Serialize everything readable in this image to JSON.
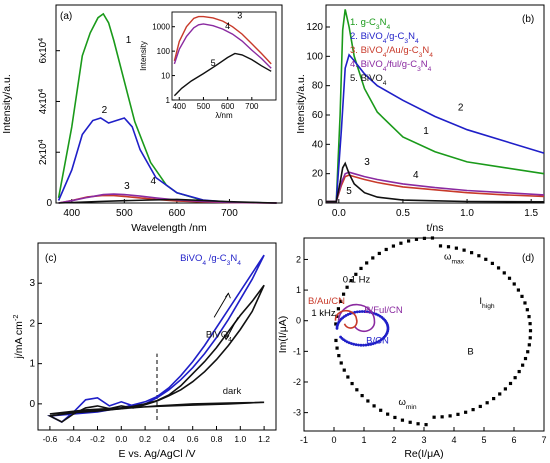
{
  "chart_data": [
    {
      "panel": "(a)",
      "type": "line",
      "xlabel": "Wavelength /nm",
      "ylabel": "Intensity/a.u.",
      "xlim": [
        370,
        800
      ],
      "ylim": [
        0,
        78000
      ],
      "xticks": [
        "400",
        "500",
        "600",
        "700"
      ],
      "yticks": [
        {
          "v": 0,
          "t": "0"
        },
        {
          "v": 20000,
          "t": "2x10",
          "e": "4"
        },
        {
          "v": 40000,
          "t": "4x10",
          "e": "4"
        },
        {
          "v": 60000,
          "t": "6x10",
          "e": "4"
        }
      ],
      "series": [
        {
          "label": "1",
          "color": "#1a9a1a",
          "x": [
            375,
            400,
            420,
            435,
            450,
            460,
            470,
            480,
            500,
            520,
            550,
            580,
            600,
            650,
            700,
            750,
            790
          ],
          "y": [
            2000,
            30000,
            58000,
            67000,
            73000,
            74500,
            71000,
            64000,
            48000,
            32000,
            16000,
            7000,
            4000,
            1000,
            300,
            100,
            0
          ]
        },
        {
          "label": "2",
          "color": "#1f1fc8",
          "x": [
            375,
            400,
            420,
            440,
            455,
            470,
            485,
            500,
            515,
            530,
            560,
            600,
            650,
            700,
            750,
            790
          ],
          "y": [
            1000,
            13000,
            27000,
            32500,
            33500,
            31500,
            32500,
            33500,
            30000,
            21000,
            10000,
            4000,
            1200,
            300,
            100,
            0
          ]
        },
        {
          "label": "3",
          "color": "#c83a2a",
          "x": [
            375,
            400,
            430,
            460,
            480,
            500,
            530,
            560,
            600,
            650,
            700,
            790
          ],
          "y": [
            0,
            1000,
            2400,
            3000,
            2900,
            2600,
            2000,
            1400,
            800,
            400,
            150,
            0
          ]
        },
        {
          "label": "4",
          "color": "#8a2aa0",
          "x": [
            375,
            400,
            430,
            460,
            480,
            500,
            530,
            560,
            600,
            650,
            700,
            790
          ],
          "y": [
            0,
            900,
            2200,
            3300,
            3500,
            3300,
            2700,
            2000,
            1200,
            600,
            250,
            0
          ]
        },
        {
          "label": "5",
          "color": "#111111",
          "x": [
            375,
            400,
            450,
            500,
            550,
            600,
            650,
            700,
            790
          ],
          "y": [
            0,
            200,
            600,
            900,
            1200,
            1400,
            1000,
            500,
            0
          ]
        }
      ],
      "inset": {
        "ylabel": "Intensity",
        "xlabel": "λ/nm",
        "ylog": true,
        "xlim": [
          370,
          800
        ],
        "ylim": [
          1,
          4000
        ],
        "xticks": [
          "400",
          "500",
          "600",
          "700"
        ],
        "yticks": [
          {
            "v": 1,
            "t": "1"
          },
          {
            "v": 10,
            "t": "10"
          },
          {
            "v": 100,
            "t": "100"
          },
          {
            "v": 1000,
            "t": "1000"
          }
        ],
        "series": [
          {
            "label": "3",
            "color": "#c83a2a",
            "x": [
              380,
              400,
              430,
              460,
              480,
              500,
              540,
              580,
              620,
              660,
              700,
              740,
              780
            ],
            "y": [
              40,
              250,
              1000,
              2200,
              2600,
              2600,
              2300,
              1700,
              1000,
              500,
              200,
              80,
              30
            ]
          },
          {
            "label": "4",
            "color": "#8a2aa0",
            "x": [
              380,
              400,
              430,
              460,
              480,
              500,
              540,
              580,
              620,
              660,
              700,
              740,
              780
            ],
            "y": [
              30,
              120,
              400,
              900,
              1200,
              1300,
              1100,
              800,
              500,
              260,
              110,
              50,
              20
            ]
          },
          {
            "label": "5",
            "color": "#111111",
            "x": [
              380,
              410,
              450,
              500,
              550,
              600,
              630,
              660,
              700,
              740,
              780
            ],
            "y": [
              1.5,
              3,
              6,
              12,
              25,
              55,
              80,
              70,
              45,
              25,
              15
            ]
          }
        ],
        "labels": [
          {
            "t": "3",
            "x": 650,
            "y": 2200
          },
          {
            "t": "4",
            "x": 600,
            "y": 800
          },
          {
            "t": "5",
            "x": 540,
            "y": 25
          }
        ]
      },
      "labels": [
        {
          "t": "1",
          "x": 508,
          "y": 63000
        },
        {
          "t": "2",
          "x": 462,
          "y": 35500
        },
        {
          "t": "3",
          "x": 505,
          "y": 5500
        },
        {
          "t": "4",
          "x": 555,
          "y": 7500
        }
      ]
    },
    {
      "panel": "(b)",
      "type": "line",
      "xlabel": "t/ns",
      "ylabel": "Intensity/a.u.",
      "xlim": [
        -0.1,
        1.6
      ],
      "ylim": [
        0,
        135
      ],
      "xticks": [
        "0.0",
        "0.5",
        "1.0",
        "1.5"
      ],
      "yticks": [
        "0",
        "20",
        "40",
        "60",
        "80",
        "100",
        "120"
      ],
      "legend": [
        {
          "num": "1.",
          "text": "g-C",
          "sub": "3",
          "text2": "N",
          "sub2": "4",
          "color": "#1a9a1a"
        },
        {
          "num": "2.",
          "text": "BiVO",
          "sub": "4",
          "text2": "/g-C",
          "sub2": "3",
          "text3": "N",
          "sub3": "4",
          "color": "#1f1fc8"
        },
        {
          "num": "3.",
          "text": "BiVO",
          "sub": "4",
          "text2": "/Au/g-C",
          "sub2": "3",
          "text3": "N",
          "sub3": "4",
          "color": "#c83a2a"
        },
        {
          "num": "4.",
          "text": "BiVO",
          "sub": "4",
          "text2": "/ful/g-C",
          "sub2": "3",
          "text3": "N",
          "sub3": "4",
          "color": "#8a2aa0"
        },
        {
          "num": "5.",
          "text": "BiVO",
          "sub": "4",
          "color": "#111111"
        }
      ],
      "series": [
        {
          "label": "1",
          "color": "#1a9a1a",
          "x": [
            -0.1,
            -0.02,
            0.01,
            0.03,
            0.05,
            0.08,
            0.12,
            0.2,
            0.3,
            0.5,
            0.75,
            1.0,
            1.3,
            1.6
          ],
          "y": [
            1,
            1,
            60,
            118,
            132,
            120,
            100,
            78,
            62,
            45,
            35,
            28,
            24,
            20
          ]
        },
        {
          "label": "2",
          "color": "#1f1fc8",
          "x": [
            -0.1,
            -0.02,
            0.02,
            0.05,
            0.08,
            0.12,
            0.2,
            0.3,
            0.5,
            0.75,
            1.0,
            1.3,
            1.6
          ],
          "y": [
            1,
            1,
            50,
            92,
            101,
            97,
            88,
            80,
            70,
            59,
            50,
            42,
            34
          ]
        },
        {
          "label": "3",
          "color": "#c83a2a",
          "x": [
            -0.1,
            -0.02,
            0.02,
            0.05,
            0.08,
            0.12,
            0.2,
            0.3,
            0.5,
            0.75,
            1.0,
            1.3,
            1.6
          ],
          "y": [
            1,
            1,
            12,
            18,
            19,
            18,
            16,
            14,
            11,
            9,
            7,
            5.5,
            4.5
          ]
        },
        {
          "label": "4",
          "color": "#8a2aa0",
          "x": [
            -0.1,
            -0.02,
            0.02,
            0.05,
            0.08,
            0.12,
            0.2,
            0.3,
            0.5,
            0.75,
            1.0,
            1.3,
            1.6
          ],
          "y": [
            1,
            1,
            14,
            20,
            21,
            20,
            18,
            16,
            13,
            10.5,
            8.5,
            7,
            5.5
          ]
        },
        {
          "label": "5",
          "color": "#111111",
          "x": [
            -0.1,
            -0.02,
            0.01,
            0.03,
            0.05,
            0.08,
            0.12,
            0.2,
            0.3,
            0.5,
            0.75,
            1.0,
            1.6
          ],
          "y": [
            1,
            1,
            14,
            24,
            27,
            20,
            13,
            7,
            4,
            2,
            1.5,
            1,
            0.8
          ]
        }
      ],
      "labels": [
        {
          "t": "1",
          "x": 0.68,
          "y": 47
        },
        {
          "t": "2",
          "x": 0.95,
          "y": 63
        },
        {
          "t": "3",
          "x": 0.22,
          "y": 26
        },
        {
          "t": "4",
          "x": 0.6,
          "y": 17
        },
        {
          "t": "5",
          "x": 0.08,
          "y": 6
        }
      ]
    },
    {
      "panel": "(c)",
      "type": "line",
      "xlabel": "E vs. Ag/AgCl /V",
      "ylabel": "j/mA cm",
      "ylabel_sup": "-2",
      "xlim": [
        -0.7,
        1.3
      ],
      "ylim": [
        -0.65,
        4.0
      ],
      "xticks": [
        "-0.6",
        "-0.4",
        "-0.2",
        "0.0",
        "0.2",
        "0.4",
        "0.6",
        "0.8",
        "1.0",
        "1.2"
      ],
      "yticks": [
        "0",
        "1",
        "2",
        "3"
      ],
      "dashed_x": 0.3,
      "series": [
        {
          "label": "BiVO4/g-C3N4",
          "color": "#1f1fc8",
          "x": [
            -0.6,
            -0.4,
            -0.2,
            0.0,
            0.2,
            0.3,
            0.4,
            0.5,
            0.6,
            0.7,
            0.8,
            0.9,
            1.0,
            1.1,
            1.2,
            1.1,
            1.0,
            0.9,
            0.8,
            0.7,
            0.6,
            0.5,
            0.4,
            0.3,
            0.2,
            0.1,
            0.0,
            -0.1,
            -0.2,
            -0.3,
            -0.4,
            -0.5,
            -0.6
          ],
          "y": [
            -0.3,
            -0.25,
            -0.2,
            -0.1,
            0.05,
            0.18,
            0.4,
            0.7,
            1.05,
            1.45,
            1.9,
            2.35,
            2.8,
            3.25,
            3.7,
            3.1,
            2.6,
            2.1,
            1.65,
            1.25,
            0.9,
            0.6,
            0.35,
            0.15,
            0.0,
            -0.05,
            0.05,
            -0.05,
            0.15,
            0.1,
            -0.2,
            -0.45,
            -0.3
          ]
        },
        {
          "label": "BiVO4",
          "color": "#111111",
          "x": [
            -0.6,
            -0.4,
            -0.2,
            0.0,
            0.2,
            0.3,
            0.4,
            0.5,
            0.6,
            0.7,
            0.8,
            0.9,
            1.0,
            1.1,
            1.2,
            1.1,
            1.0,
            0.9,
            0.8,
            0.7,
            0.6,
            0.5,
            0.4,
            0.3,
            0.2,
            0.1,
            0.0,
            -0.1,
            -0.2,
            -0.3,
            -0.4,
            -0.5,
            -0.6
          ],
          "y": [
            -0.3,
            -0.22,
            -0.18,
            -0.12,
            0.0,
            0.08,
            0.22,
            0.45,
            0.75,
            1.05,
            1.4,
            1.8,
            2.2,
            2.55,
            2.95,
            2.3,
            1.85,
            1.45,
            1.1,
            0.8,
            0.55,
            0.35,
            0.2,
            0.07,
            -0.02,
            -0.1,
            -0.05,
            -0.12,
            -0.05,
            -0.1,
            -0.25,
            -0.45,
            -0.3
          ]
        },
        {
          "label": "dark",
          "color": "#111111",
          "x": [
            -0.6,
            -0.3,
            0.0,
            0.3,
            0.6,
            0.9,
            1.2,
            0.9,
            0.6,
            0.3,
            0.0,
            -0.3,
            -0.6
          ],
          "y": [
            -0.25,
            -0.18,
            -0.12,
            -0.05,
            0.0,
            0.02,
            0.04,
            0.0,
            -0.03,
            -0.06,
            -0.1,
            -0.15,
            -0.25
          ]
        }
      ],
      "labels": [
        {
          "t": "BiVO",
          "sub": "4",
          "t2": " /g-C",
          "sub2": "3",
          "t3": "N",
          "sub3": "4",
          "x": 0.75,
          "y": 3.55,
          "color": "#1f1fc8"
        },
        {
          "t": "BiVO",
          "sub": "4",
          "x": 0.82,
          "y": 1.65,
          "color": "#111111"
        },
        {
          "t": "dark",
          "x": 0.93,
          "y": 0.25,
          "color": "#111111"
        }
      ]
    },
    {
      "panel": "(d)",
      "type": "scatter",
      "xlabel": "Re(I/μA)",
      "ylabel": "Im(I/μA)",
      "xlim": [
        -1,
        7
      ],
      "ylim": [
        -3.6,
        2.7
      ],
      "xticks": [
        "-1",
        "0",
        "1",
        "2",
        "3",
        "4",
        "5",
        "6",
        "7"
      ],
      "yticks": [
        "-3",
        "-2",
        "-1",
        "0",
        "1",
        "2"
      ],
      "labels": [
        {
          "t": "ω",
          "sub": "max",
          "x": 4.0,
          "y": 2.0
        },
        {
          "t": "ω",
          "sub": "min",
          "x": 2.45,
          "y": -2.75
        },
        {
          "t": "I",
          "sub": "high",
          "x": 5.1,
          "y": 0.55
        },
        {
          "t": "B",
          "x": 4.55,
          "y": -1.1
        },
        {
          "t": "0.1 Hz",
          "x": 0.75,
          "y": 1.25
        },
        {
          "t": "1 kHz",
          "x": -0.35,
          "y": 0.15
        },
        {
          "t": "B/Au/CN",
          "x": -0.25,
          "y": 0.55,
          "color": "#c83a2a"
        },
        {
          "t": "B/Ful/CN",
          "x": 1.65,
          "y": 0.25,
          "color": "#8a2aa0"
        },
        {
          "t": "B/CN",
          "x": 1.45,
          "y": -0.75,
          "color": "#1f1fc8"
        }
      ]
    }
  ]
}
